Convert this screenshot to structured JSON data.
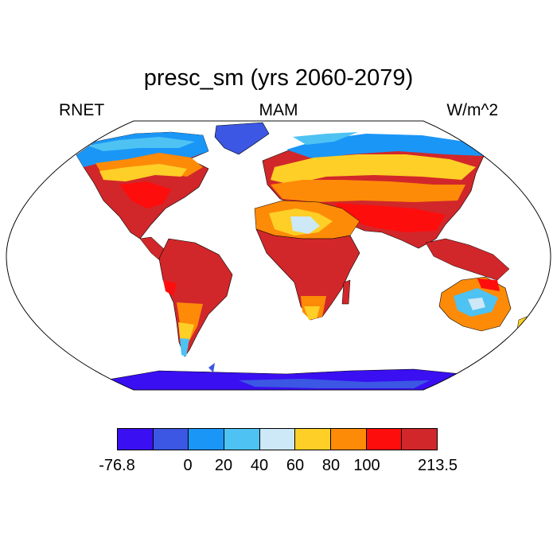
{
  "header": {
    "title": "presc_sm (yrs 2060-2079)",
    "left_label": "RNET",
    "center_label": "MAM",
    "right_label": "W/m^2"
  },
  "colorbar": {
    "colors": [
      "#3a0ff2",
      "#3b57e3",
      "#1a96f7",
      "#4ec2f2",
      "#cde8f7",
      "#fecf26",
      "#fd8b08",
      "#fe0d0d",
      "#d1272a"
    ],
    "tick_labels": [
      "-76.8",
      "0",
      "20",
      "40",
      "60",
      "80",
      "100",
      "213.5"
    ]
  },
  "map": {
    "projection": "robinson",
    "land_outline_color": "#000000"
  }
}
